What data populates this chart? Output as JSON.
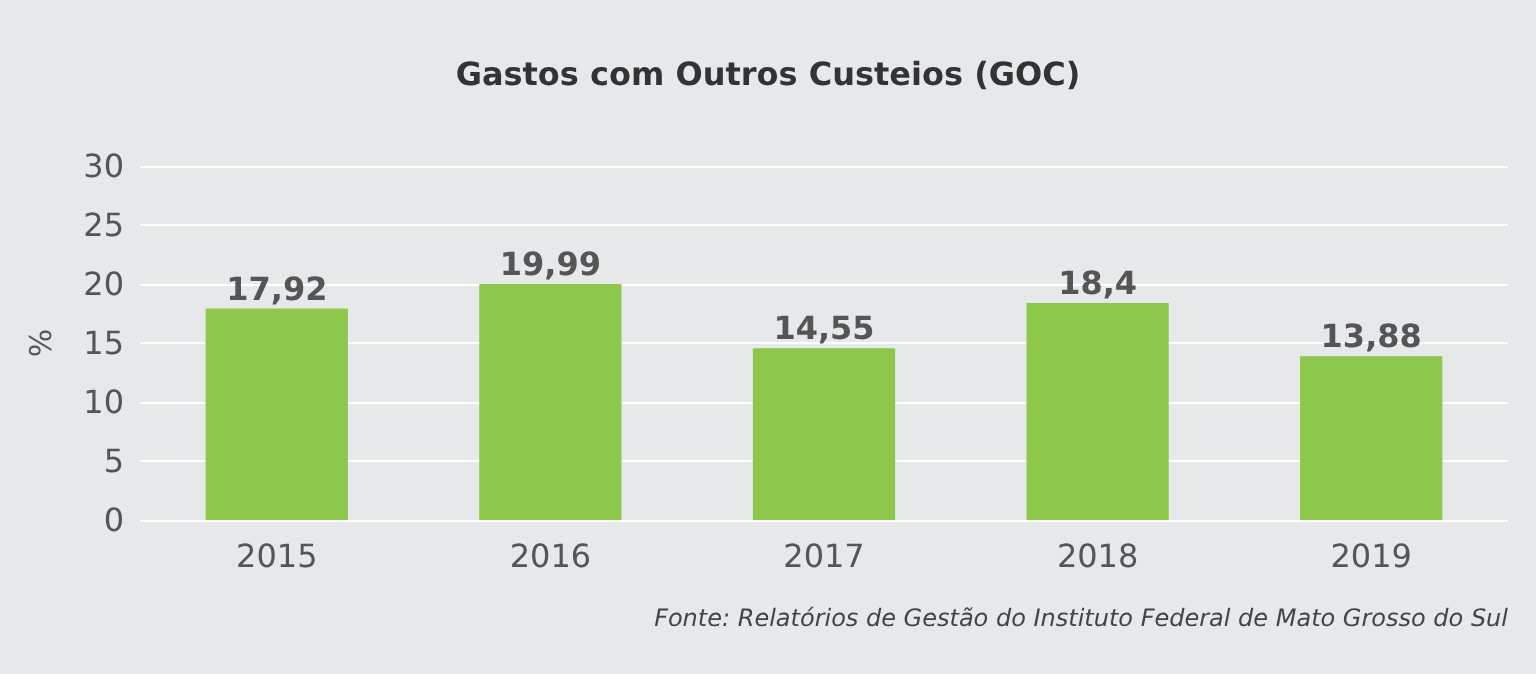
{
  "chart_data": {
    "type": "bar",
    "title": "Gastos com Outros Custeios (GOC)",
    "ylabel": "%",
    "categories": [
      "2015",
      "2016",
      "2017",
      "2018",
      "2019"
    ],
    "values": [
      17.92,
      19.99,
      14.55,
      18.4,
      13.88
    ],
    "value_labels": [
      "17,92",
      "19,99",
      "14,55",
      "18,4",
      "13,88"
    ],
    "color": "#8dc74b",
    "ylim": [
      0,
      30
    ],
    "yticks": [
      0,
      5,
      10,
      15,
      20,
      25,
      30
    ],
    "grid": "y",
    "annotations": [
      "Fonte: Relatórios de Gestão do Instituto Federal de Mato Grosso do Sul"
    ]
  }
}
